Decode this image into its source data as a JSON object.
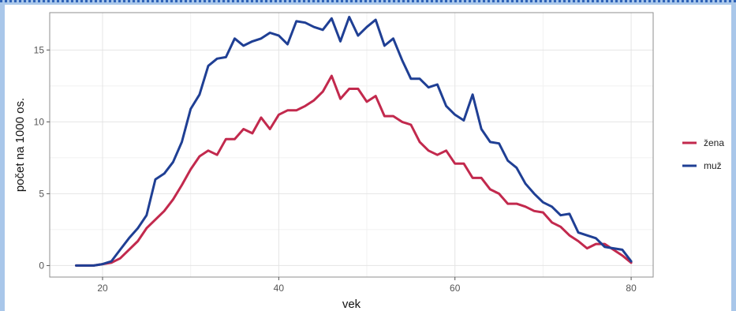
{
  "chart_data": {
    "type": "line",
    "xlabel": "vek",
    "ylabel": "počet na 1000 os.",
    "xlim": [
      14,
      82.5
    ],
    "ylim": [
      -0.8,
      17.6
    ],
    "xticks": [
      20,
      40,
      60,
      80
    ],
    "yticks": [
      0,
      5,
      10,
      15
    ],
    "grid": true,
    "legend_position": "right",
    "x": [
      17,
      18,
      19,
      20,
      21,
      22,
      23,
      24,
      25,
      26,
      27,
      28,
      29,
      30,
      31,
      32,
      33,
      34,
      35,
      36,
      37,
      38,
      39,
      40,
      41,
      42,
      43,
      44,
      45,
      46,
      47,
      48,
      49,
      50,
      51,
      52,
      53,
      54,
      55,
      56,
      57,
      58,
      59,
      60,
      61,
      62,
      63,
      64,
      65,
      66,
      67,
      68,
      69,
      70,
      71,
      72,
      73,
      74,
      75,
      76,
      77,
      78,
      79,
      80
    ],
    "series": [
      {
        "name": "žena",
        "color": "#c2294d",
        "values": [
          0.0,
          0.0,
          0.0,
          0.1,
          0.2,
          0.5,
          1.1,
          1.7,
          2.6,
          3.2,
          3.8,
          4.6,
          5.6,
          6.7,
          7.6,
          8.0,
          7.7,
          8.8,
          8.8,
          9.5,
          9.2,
          10.3,
          9.5,
          10.5,
          10.8,
          10.8,
          11.1,
          11.5,
          12.1,
          13.2,
          11.6,
          12.3,
          12.3,
          11.4,
          11.8,
          10.4,
          10.4,
          10.0,
          9.8,
          8.6,
          8.0,
          7.7,
          8.0,
          7.1,
          7.1,
          6.1,
          6.1,
          5.3,
          5.0,
          4.3,
          4.3,
          4.1,
          3.8,
          3.7,
          3.0,
          2.7,
          2.1,
          1.7,
          1.2,
          1.5,
          1.5,
          1.1,
          0.7,
          0.2
        ]
      },
      {
        "name": "muž",
        "color": "#1f3f94",
        "values": [
          0.0,
          0.0,
          0.0,
          0.1,
          0.3,
          1.1,
          1.9,
          2.6,
          3.5,
          6.0,
          6.4,
          7.2,
          8.6,
          10.9,
          11.9,
          13.9,
          14.4,
          14.5,
          15.8,
          15.3,
          15.6,
          15.8,
          16.2,
          16.0,
          15.4,
          17.0,
          16.9,
          16.6,
          16.4,
          17.2,
          15.6,
          17.3,
          16.0,
          16.6,
          17.1,
          15.3,
          15.8,
          14.3,
          13.0,
          13.0,
          12.4,
          12.6,
          11.1,
          10.5,
          10.1,
          11.9,
          9.5,
          8.6,
          8.5,
          7.3,
          6.8,
          5.7,
          5.0,
          4.4,
          4.1,
          3.5,
          3.6,
          2.3,
          2.1,
          1.9,
          1.3,
          1.2,
          1.1,
          0.3
        ]
      }
    ]
  }
}
